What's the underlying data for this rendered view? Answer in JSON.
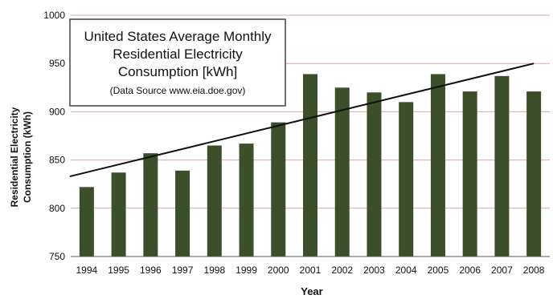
{
  "chart_data": {
    "type": "bar",
    "title_lines": [
      "United States Average Monthly",
      "Residential Electricity",
      "Consumption [kWh]"
    ],
    "subtitle": "(Data Source www.eia.doe.gov)",
    "xlabel": "Year",
    "ylabel_lines": [
      "Residential Electricity",
      "Consumption (kWh)"
    ],
    "categories": [
      "1994",
      "1995",
      "1996",
      "1997",
      "1998",
      "1999",
      "2000",
      "2001",
      "2002",
      "2003",
      "2004",
      "2005",
      "2006",
      "2007",
      "2008"
    ],
    "values": [
      822,
      837,
      857,
      839,
      865,
      867,
      889,
      939,
      925,
      920,
      910,
      939,
      921,
      937,
      921
    ],
    "yticks": [
      "1000",
      "950",
      "900",
      "850",
      "800",
      "750"
    ],
    "ylim": [
      750,
      1000
    ],
    "trendline": {
      "start": 833,
      "end": 950
    },
    "grid": true,
    "colors": {
      "bar": "#3a4f2a",
      "grid": "#d9a7a7",
      "trend": "#111111",
      "axis": "#555555"
    }
  }
}
